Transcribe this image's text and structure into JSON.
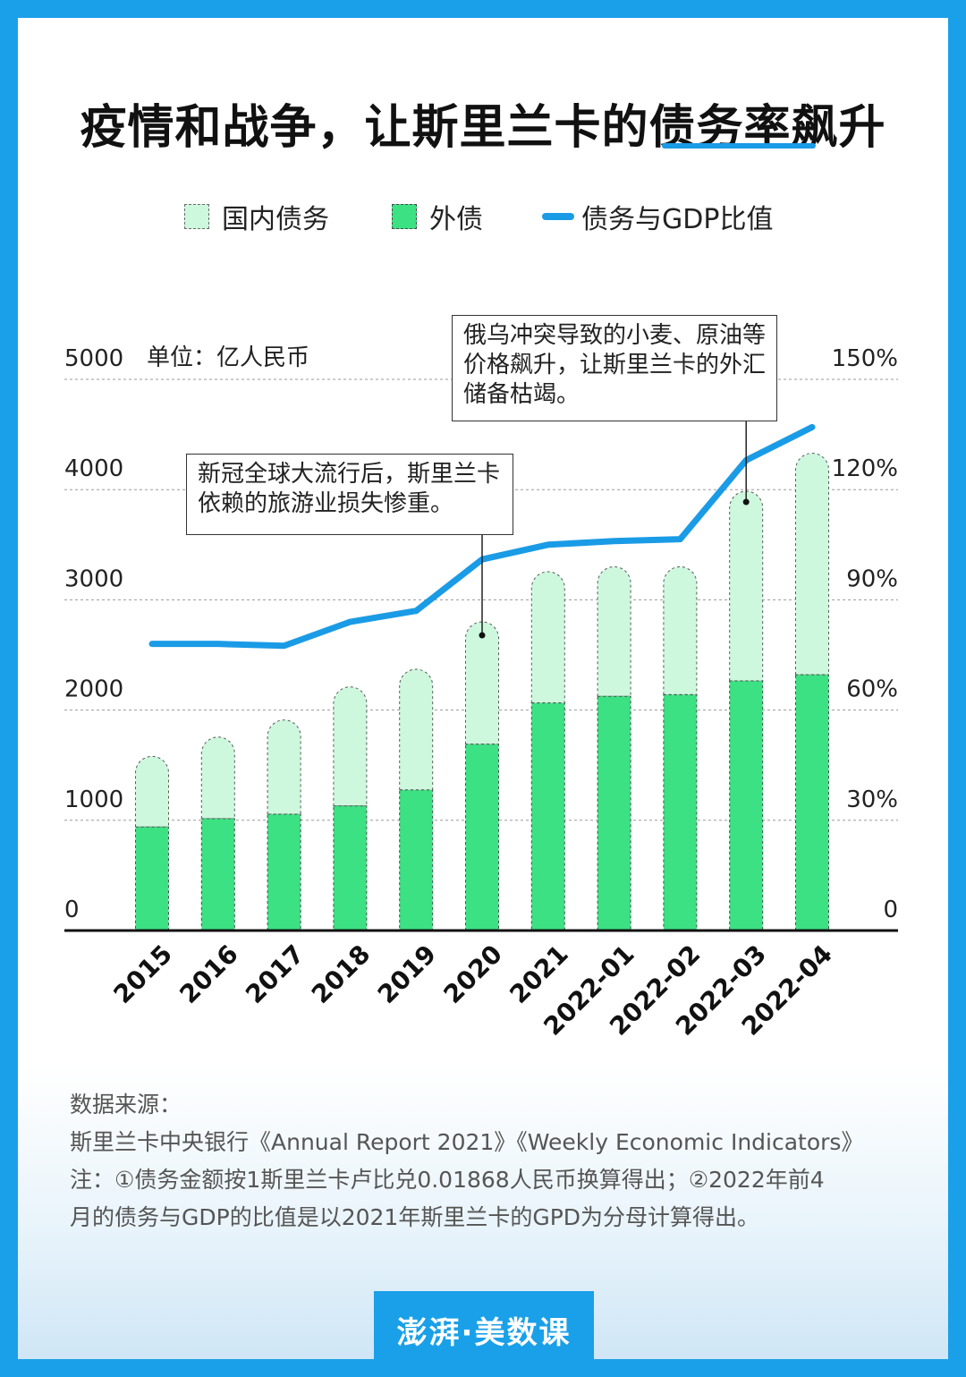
{
  "title": "疫情和战争，让斯里兰卡的债务率飙升",
  "legend": {
    "domestic": "国内债务",
    "foreign": "外债",
    "ratio": "债务与GDP比值"
  },
  "colors": {
    "domestic": "#cdf8de",
    "foreign": "#3ce183",
    "ratio": "#1a9be6",
    "frame": "#1aa0e8"
  },
  "chart_data": {
    "type": "bar",
    "stacked": true,
    "unit_label": "单位：亿人民币",
    "categories": [
      "2015",
      "2016",
      "2017",
      "2018",
      "2019",
      "2020",
      "2021",
      "2022-01",
      "2022-02",
      "2022-03",
      "2022-04"
    ],
    "series": [
      {
        "name": "外债",
        "axis": "left",
        "values": [
          940,
          1015,
          1055,
          1130,
          1275,
          1690,
          2065,
          2125,
          2140,
          2265,
          2320
        ]
      },
      {
        "name": "国内债务",
        "axis": "left",
        "values": [
          640,
          740,
          855,
          1080,
          1095,
          1110,
          1190,
          1175,
          1160,
          1720,
          2010
        ]
      },
      {
        "name": "债务与GDP比值",
        "axis": "right",
        "type": "line",
        "values": [
          78,
          78,
          77.5,
          84,
          87,
          101,
          105,
          106,
          106.5,
          128,
          137
        ]
      }
    ],
    "left_axis": {
      "ticks": [
        "0",
        "1000",
        "2000",
        "3000",
        "4000",
        "5000"
      ],
      "ylim": [
        0,
        5000
      ]
    },
    "right_axis": {
      "ticks": [
        "0",
        "30%",
        "60%",
        "90%",
        "120%",
        "150%"
      ],
      "ylim": [
        0,
        150
      ]
    },
    "grid": true,
    "annotations": [
      {
        "id": "covid",
        "category": "2020",
        "text": "新冠全球大流行后，斯里兰卡依赖的旅游业损失惨重。"
      },
      {
        "id": "war",
        "category": "2022-03",
        "text": "俄乌冲突导致的小麦、原油等价格飙升，让斯里兰卡的外汇储备枯竭。"
      }
    ]
  },
  "footer": {
    "source_label": "数据来源：",
    "source": "斯里兰卡中央银行《Annual Report 2021》《Weekly Economic Indicators》",
    "note_line1": "注：①债务金额按1斯里兰卡卢比兑0.01868人民币换算得出；②2022年前4",
    "note_line2": "月的债务与GDP的比值是以2021年斯里兰卡的GPD为分母计算得出。"
  },
  "logo": "澎湃·美数课"
}
